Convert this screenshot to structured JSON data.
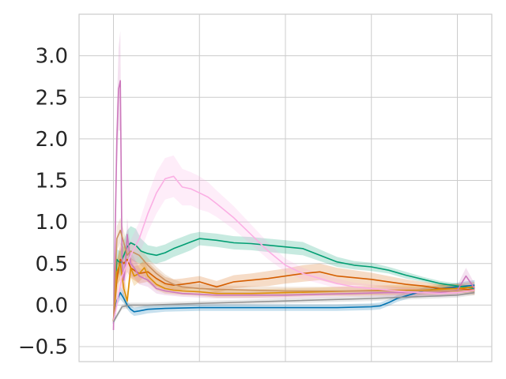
{
  "chart_data": {
    "type": "line",
    "title": "",
    "xlabel": "",
    "ylabel": "",
    "xlim": [
      -0.02,
      0.22
    ],
    "ylim": [
      -0.68,
      3.5
    ],
    "x_gridlines": [
      0,
      0.05,
      0.1,
      0.15,
      0.2
    ],
    "yticks": [
      -0.5,
      0.0,
      0.5,
      1.0,
      1.5,
      2.0,
      2.5,
      3.0
    ],
    "ytick_labels": [
      "−0.5",
      "0.0",
      "0.5",
      "1.0",
      "1.5",
      "2.0",
      "2.5",
      "3.0"
    ],
    "xtick_labels_visible": false,
    "grid": true,
    "legend": "none",
    "series": [
      {
        "color": "#0173b2",
        "x": [
          0,
          0.002,
          0.004,
          0.006,
          0.008,
          0.01,
          0.012,
          0.015,
          0.02,
          0.03,
          0.05,
          0.08,
          0.1,
          0.13,
          0.15,
          0.155,
          0.16,
          0.165,
          0.17,
          0.175,
          0.18,
          0.19,
          0.2,
          0.21
        ],
        "y": [
          -0.22,
          0.05,
          0.15,
          0.08,
          0.0,
          -0.05,
          -0.08,
          -0.07,
          -0.05,
          -0.04,
          -0.03,
          -0.03,
          -0.03,
          -0.03,
          -0.02,
          -0.01,
          0.03,
          0.08,
          0.11,
          0.14,
          0.17,
          0.2,
          0.22,
          0.24
        ],
        "band": [
          0.03,
          0.05,
          0.08,
          0.06,
          0.05,
          0.05,
          0.05,
          0.05,
          0.05,
          0.04,
          0.04,
          0.04,
          0.04,
          0.04,
          0.04,
          0.04,
          0.04,
          0.04,
          0.04,
          0.04,
          0.04,
          0.04,
          0.05,
          0.06
        ]
      },
      {
        "color": "#029e73",
        "x": [
          0,
          0.002,
          0.004,
          0.006,
          0.008,
          0.01,
          0.013,
          0.016,
          0.02,
          0.025,
          0.03,
          0.035,
          0.04,
          0.045,
          0.05,
          0.06,
          0.07,
          0.08,
          0.09,
          0.1,
          0.11,
          0.12,
          0.13,
          0.14,
          0.15,
          0.16,
          0.17,
          0.18,
          0.19,
          0.2,
          0.21
        ],
        "y": [
          -0.2,
          0.55,
          0.5,
          0.6,
          0.7,
          0.75,
          0.72,
          0.65,
          0.62,
          0.6,
          0.63,
          0.68,
          0.72,
          0.76,
          0.8,
          0.78,
          0.75,
          0.74,
          0.72,
          0.7,
          0.68,
          0.6,
          0.52,
          0.48,
          0.46,
          0.42,
          0.36,
          0.31,
          0.26,
          0.23,
          0.2
        ],
        "band": [
          0.05,
          0.12,
          0.15,
          0.18,
          0.2,
          0.2,
          0.2,
          0.15,
          0.1,
          0.1,
          0.1,
          0.1,
          0.1,
          0.1,
          0.08,
          0.08,
          0.08,
          0.08,
          0.08,
          0.08,
          0.08,
          0.07,
          0.06,
          0.05,
          0.05,
          0.04,
          0.04,
          0.03,
          0.03,
          0.03,
          0.03
        ]
      },
      {
        "color": "#d55e00",
        "x": [
          0,
          0.002,
          0.004,
          0.006,
          0.008,
          0.01,
          0.012,
          0.015,
          0.02,
          0.025,
          0.03,
          0.035,
          0.04,
          0.05,
          0.06,
          0.07,
          0.08,
          0.09,
          0.1,
          0.11,
          0.12,
          0.13,
          0.14,
          0.15,
          0.16,
          0.17,
          0.18,
          0.19,
          0.2,
          0.21
        ],
        "y": [
          -0.2,
          0.3,
          0.55,
          0.5,
          0.55,
          0.45,
          0.42,
          0.38,
          0.4,
          0.32,
          0.26,
          0.24,
          0.25,
          0.28,
          0.22,
          0.28,
          0.3,
          0.32,
          0.35,
          0.38,
          0.4,
          0.35,
          0.33,
          0.31,
          0.28,
          0.25,
          0.23,
          0.2,
          0.2,
          0.18
        ],
        "band": [
          0.05,
          0.2,
          0.2,
          0.2,
          0.15,
          0.12,
          0.12,
          0.12,
          0.12,
          0.1,
          0.08,
          0.07,
          0.07,
          0.07,
          0.07,
          0.08,
          0.08,
          0.09,
          0.09,
          0.1,
          0.1,
          0.1,
          0.09,
          0.08,
          0.07,
          0.06,
          0.05,
          0.05,
          0.05,
          0.05
        ]
      },
      {
        "color": "#de8f05",
        "x": [
          0,
          0.002,
          0.004,
          0.006,
          0.008,
          0.01,
          0.012,
          0.015,
          0.018,
          0.02,
          0.025,
          0.03,
          0.035,
          0.04,
          0.05,
          0.06,
          0.08,
          0.1,
          0.12,
          0.14,
          0.16,
          0.18,
          0.2,
          0.21
        ],
        "y": [
          -0.2,
          0.4,
          0.5,
          0.2,
          0.05,
          0.45,
          0.35,
          0.38,
          0.45,
          0.35,
          0.25,
          0.2,
          0.18,
          0.17,
          0.16,
          0.14,
          0.14,
          0.15,
          0.16,
          0.17,
          0.18,
          0.18,
          0.2,
          0.22
        ],
        "band": [
          0.05,
          0.15,
          0.2,
          0.15,
          0.1,
          0.12,
          0.12,
          0.1,
          0.1,
          0.08,
          0.07,
          0.06,
          0.05,
          0.05,
          0.05,
          0.05,
          0.05,
          0.05,
          0.05,
          0.06,
          0.06,
          0.06,
          0.06,
          0.06
        ]
      },
      {
        "color": "#cc78bc",
        "x": [
          0,
          0.002,
          0.003,
          0.004,
          0.005,
          0.006,
          0.007,
          0.008,
          0.01,
          0.012,
          0.015,
          0.02,
          0.025,
          0.03,
          0.04,
          0.05,
          0.06,
          0.08,
          0.1,
          0.12,
          0.14,
          0.16,
          0.18,
          0.19,
          0.2,
          0.205,
          0.21
        ],
        "y": [
          -0.3,
          2.0,
          2.6,
          2.7,
          0.5,
          0.3,
          0.5,
          0.85,
          0.5,
          0.45,
          0.35,
          0.3,
          0.2,
          0.17,
          0.14,
          0.13,
          0.12,
          0.12,
          0.12,
          0.13,
          0.14,
          0.15,
          0.15,
          0.15,
          0.18,
          0.35,
          0.2
        ],
        "band": [
          0.05,
          0.4,
          0.5,
          0.6,
          0.3,
          0.2,
          0.2,
          0.2,
          0.15,
          0.12,
          0.1,
          0.08,
          0.06,
          0.05,
          0.04,
          0.04,
          0.04,
          0.04,
          0.04,
          0.04,
          0.04,
          0.05,
          0.05,
          0.05,
          0.06,
          0.1,
          0.06
        ]
      },
      {
        "color": "#ca9161",
        "x": [
          0,
          0.002,
          0.004,
          0.006,
          0.008,
          0.01,
          0.015,
          0.02,
          0.025,
          0.03,
          0.035,
          0.04,
          0.05,
          0.06,
          0.08,
          0.1,
          0.12,
          0.14,
          0.16,
          0.18,
          0.2,
          0.21
        ],
        "y": [
          -0.2,
          0.8,
          0.9,
          0.75,
          0.6,
          0.65,
          0.6,
          0.48,
          0.38,
          0.3,
          0.25,
          0.22,
          0.2,
          0.19,
          0.18,
          0.17,
          0.17,
          0.17,
          0.17,
          0.17,
          0.17,
          0.17
        ],
        "band": [
          0.05,
          0.15,
          0.15,
          0.15,
          0.12,
          0.12,
          0.1,
          0.09,
          0.08,
          0.07,
          0.06,
          0.05,
          0.05,
          0.05,
          0.05,
          0.05,
          0.05,
          0.05,
          0.05,
          0.05,
          0.05,
          0.05
        ]
      },
      {
        "color": "#fbafe4",
        "x": [
          0,
          0.005,
          0.01,
          0.015,
          0.02,
          0.025,
          0.03,
          0.035,
          0.04,
          0.045,
          0.05,
          0.055,
          0.06,
          0.07,
          0.08,
          0.09,
          0.1,
          0.11,
          0.12,
          0.13,
          0.14,
          0.15,
          0.16,
          0.17,
          0.18,
          0.19,
          0.2,
          0.21
        ],
        "y": [
          -0.2,
          0.35,
          0.6,
          0.8,
          1.1,
          1.35,
          1.52,
          1.55,
          1.42,
          1.4,
          1.35,
          1.3,
          1.22,
          1.05,
          0.85,
          0.65,
          0.48,
          0.38,
          0.32,
          0.26,
          0.22,
          0.2,
          0.18,
          0.16,
          0.15,
          0.14,
          0.15,
          0.18
        ],
        "band": [
          0.05,
          0.15,
          0.18,
          0.2,
          0.22,
          0.25,
          0.25,
          0.25,
          0.22,
          0.2,
          0.2,
          0.18,
          0.16,
          0.14,
          0.12,
          0.1,
          0.08,
          0.07,
          0.06,
          0.06,
          0.05,
          0.05,
          0.05,
          0.05,
          0.04,
          0.04,
          0.04,
          0.04
        ]
      },
      {
        "color": "#949494",
        "x": [
          0,
          0.005,
          0.01,
          0.02,
          0.05,
          0.1,
          0.15,
          0.2,
          0.21
        ],
        "y": [
          -0.2,
          -0.02,
          0.0,
          0.0,
          0.02,
          0.05,
          0.08,
          0.12,
          0.15
        ],
        "band": [
          0.03,
          0.03,
          0.03,
          0.03,
          0.03,
          0.03,
          0.03,
          0.03,
          0.03
        ]
      }
    ]
  }
}
